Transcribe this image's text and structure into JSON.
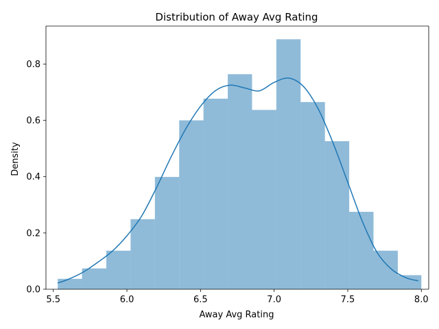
{
  "chart_data": {
    "type": "histogram",
    "title": "Distribution of Away Avg Rating",
    "xlabel": "Away Avg Rating",
    "ylabel": "Density",
    "xlim": [
      5.45,
      8.05
    ],
    "ylim": [
      0.0,
      0.935
    ],
    "xticks": [
      5.5,
      6.0,
      6.5,
      7.0,
      7.5,
      8.0
    ],
    "xtick_labels": [
      "5.5",
      "6.0",
      "6.5",
      "7.0",
      "7.5",
      "8.0"
    ],
    "yticks": [
      0.0,
      0.2,
      0.4,
      0.6,
      0.8
    ],
    "ytick_labels": [
      "0.0",
      "0.2",
      "0.4",
      "0.6",
      "0.8"
    ],
    "bins": [
      {
        "x0": 5.53,
        "x1": 5.695,
        "density": 0.037
      },
      {
        "x0": 5.695,
        "x1": 5.86,
        "density": 0.074
      },
      {
        "x0": 5.86,
        "x1": 6.025,
        "density": 0.137
      },
      {
        "x0": 6.025,
        "x1": 6.19,
        "density": 0.249
      },
      {
        "x0": 6.19,
        "x1": 6.355,
        "density": 0.399
      },
      {
        "x0": 6.355,
        "x1": 6.52,
        "density": 0.6
      },
      {
        "x0": 6.52,
        "x1": 6.685,
        "density": 0.677
      },
      {
        "x0": 6.685,
        "x1": 6.85,
        "density": 0.764
      },
      {
        "x0": 6.85,
        "x1": 7.015,
        "density": 0.637
      },
      {
        "x0": 7.015,
        "x1": 7.18,
        "density": 0.888
      },
      {
        "x0": 7.18,
        "x1": 7.345,
        "density": 0.665
      },
      {
        "x0": 7.345,
        "x1": 7.51,
        "density": 0.526
      },
      {
        "x0": 7.51,
        "x1": 7.675,
        "density": 0.275
      },
      {
        "x0": 7.675,
        "x1": 7.84,
        "density": 0.137
      },
      {
        "x0": 7.84,
        "x1": 8.0,
        "density": 0.05
      }
    ],
    "kde": {
      "x": [
        5.53,
        5.6,
        5.7,
        5.8,
        5.9,
        6.0,
        6.1,
        6.2,
        6.3,
        6.4,
        6.5,
        6.6,
        6.7,
        6.8,
        6.9,
        7.0,
        7.1,
        7.2,
        7.3,
        7.4,
        7.5,
        7.6,
        7.7,
        7.8,
        7.9,
        7.98
      ],
      "y": [
        0.022,
        0.035,
        0.06,
        0.095,
        0.135,
        0.19,
        0.26,
        0.36,
        0.47,
        0.57,
        0.65,
        0.705,
        0.725,
        0.715,
        0.705,
        0.735,
        0.75,
        0.72,
        0.64,
        0.52,
        0.38,
        0.24,
        0.13,
        0.07,
        0.04,
        0.03
      ]
    },
    "colors": {
      "bar_fill": "#1f77b4",
      "bar_opacity": 0.5,
      "kde_line": "#1f77b4"
    },
    "grid": false,
    "legend": "none"
  }
}
